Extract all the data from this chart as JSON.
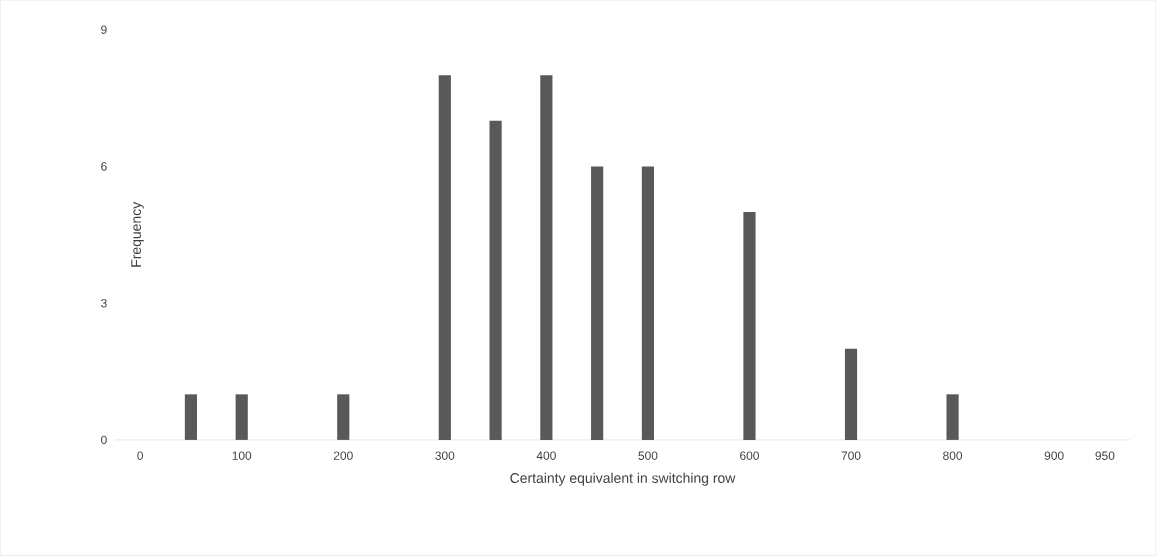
{
  "chart_data": {
    "type": "bar",
    "xlabel": "Certainty equivalent in switching row",
    "ylabel": "Frequency",
    "categories": [
      "0",
      null,
      "100",
      null,
      "200",
      null,
      "300",
      null,
      "400",
      null,
      "500",
      null,
      "600",
      null,
      "700",
      null,
      "800",
      null,
      "900",
      "950"
    ],
    "values": [
      0,
      1,
      1,
      0,
      1,
      0,
      8,
      7,
      8,
      6,
      6,
      0,
      5,
      0,
      2,
      0,
      1,
      0,
      0,
      0
    ],
    "color": "#595959",
    "ylim": [
      0,
      9
    ],
    "yticks": [
      0,
      3,
      6,
      9
    ]
  }
}
